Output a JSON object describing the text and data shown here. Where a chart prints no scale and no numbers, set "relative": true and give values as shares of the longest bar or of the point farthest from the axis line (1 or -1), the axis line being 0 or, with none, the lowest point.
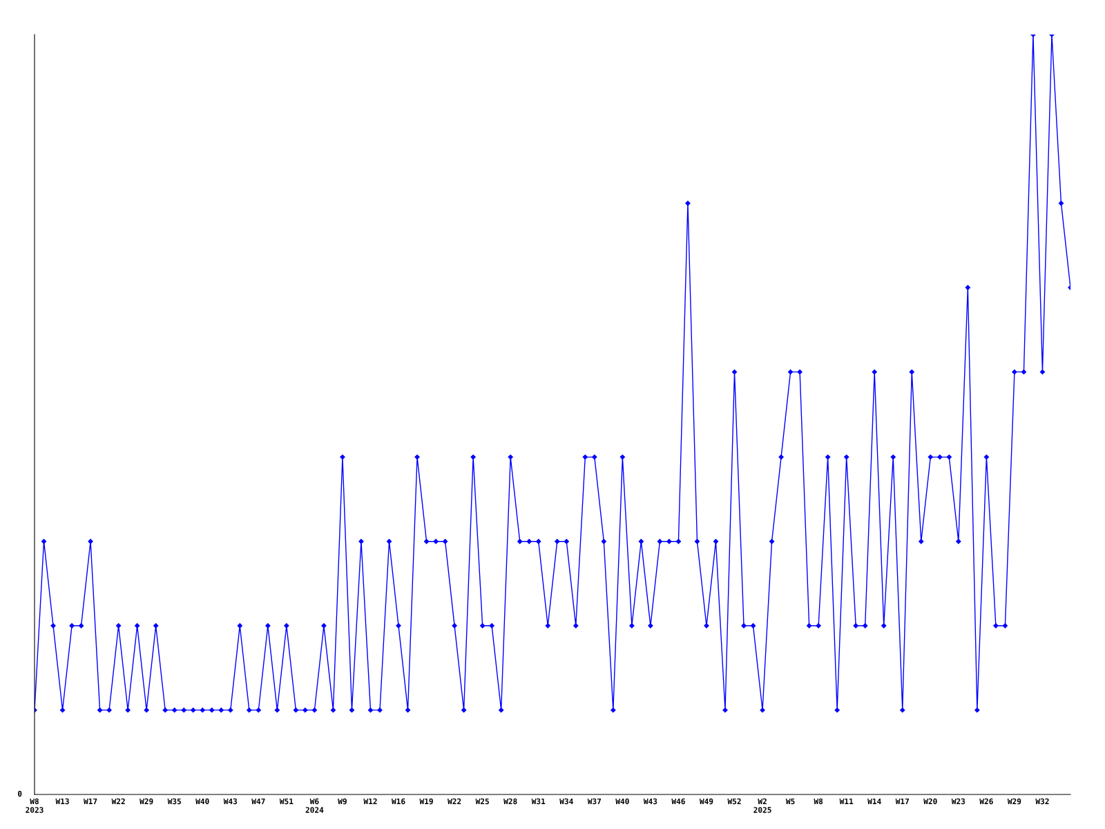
{
  "chart_data": {
    "type": "line",
    "relative": true,
    "marker": "diamond",
    "line_style": "solid",
    "grid": false,
    "legend": false,
    "categories": [
      "W8\n2023",
      null,
      null,
      "W13",
      null,
      null,
      "W17",
      null,
      null,
      "W22",
      null,
      null,
      "W29",
      null,
      null,
      "W35",
      null,
      null,
      "W40",
      null,
      null,
      "W43",
      null,
      null,
      "W47",
      null,
      null,
      "W51",
      null,
      null,
      "W6\n2024",
      null,
      null,
      "W9",
      null,
      null,
      "W12",
      null,
      null,
      "W16",
      null,
      null,
      "W19",
      null,
      null,
      "W22",
      null,
      null,
      "W25",
      null,
      null,
      "W28",
      null,
      null,
      "W31",
      null,
      null,
      "W34",
      null,
      null,
      "W37",
      null,
      null,
      "W40",
      null,
      null,
      "W43",
      null,
      null,
      "W46",
      null,
      null,
      "W49",
      null,
      null,
      "W52",
      null,
      null,
      "W2\n2025",
      null,
      null,
      "W5",
      null,
      null,
      "W8",
      null,
      null,
      "W11",
      null,
      null,
      "W14",
      null,
      null,
      "W17",
      null,
      null,
      "W20",
      null,
      null,
      "W23",
      null,
      null,
      "W26",
      null,
      null,
      "W29",
      null,
      null,
      "W32",
      null,
      null,
      null
    ],
    "series": [
      {
        "color": "#0000ff",
        "values": [
          0.111,
          0.333,
          0.222,
          0.111,
          0.222,
          0.222,
          0.333,
          0.111,
          0.111,
          0.222,
          0.111,
          0.222,
          0.111,
          0.222,
          0.111,
          0.111,
          0.111,
          0.111,
          0.111,
          0.111,
          0.111,
          0.111,
          0.222,
          0.111,
          0.111,
          0.222,
          0.111,
          0.222,
          0.111,
          0.111,
          0.111,
          0.222,
          0.111,
          0.444,
          0.111,
          0.333,
          0.111,
          0.111,
          0.333,
          0.222,
          0.111,
          0.444,
          0.333,
          0.333,
          0.333,
          0.222,
          0.111,
          0.444,
          0.222,
          0.222,
          0.111,
          0.444,
          0.333,
          0.333,
          0.333,
          0.222,
          0.333,
          0.333,
          0.222,
          0.444,
          0.444,
          0.333,
          0.111,
          0.444,
          0.222,
          0.333,
          0.222,
          0.333,
          0.333,
          0.333,
          0.778,
          0.333,
          0.222,
          0.333,
          0.111,
          0.556,
          0.222,
          0.222,
          0.111,
          0.333,
          0.444,
          0.556,
          0.556,
          0.222,
          0.222,
          0.444,
          0.111,
          0.444,
          0.222,
          0.222,
          0.556,
          0.222,
          0.444,
          0.111,
          0.556,
          0.333,
          0.444,
          0.444,
          0.444,
          0.333,
          0.667,
          0.111,
          0.444,
          0.222,
          0.222,
          0.556,
          0.556,
          1,
          0.556,
          1,
          0.778,
          0.667
        ]
      }
    ],
    "annotations": [
      "0"
    ]
  }
}
